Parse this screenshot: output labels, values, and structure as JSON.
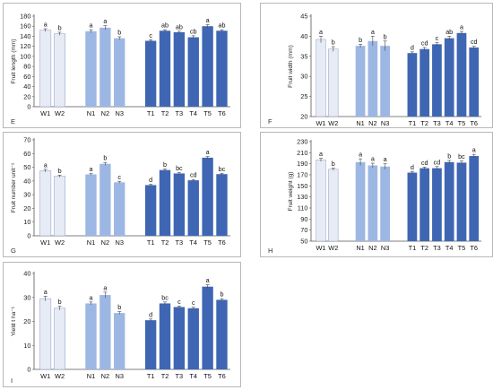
{
  "colors": {
    "W": "#e6ebf6",
    "N": "#9db7e4",
    "T": "#3f66b3",
    "green_letters": "#1e7a45",
    "axis": "#555555"
  },
  "chart_data": [
    {
      "type": "bar",
      "panel": "E",
      "ylabel": "Fruit length (mm)",
      "ylim": [
        0,
        180
      ],
      "yticks": [
        0,
        20,
        40,
        60,
        80,
        100,
        120,
        140,
        160,
        180
      ],
      "groups": [
        {
          "group": "W",
          "categories": [
            "W1",
            "W2"
          ],
          "values": [
            152,
            145
          ],
          "errors": [
            3,
            3
          ],
          "letters": [
            "a",
            "b"
          ]
        },
        {
          "group": "N",
          "categories": [
            "N1",
            "N2",
            "N3"
          ],
          "values": [
            150,
            157,
            136
          ],
          "errors": [
            3,
            4,
            3
          ],
          "letters": [
            "a",
            "a",
            "b"
          ]
        },
        {
          "group": "T",
          "categories": [
            "T1",
            "T2",
            "T3",
            "T4",
            "T5",
            "T6"
          ],
          "values": [
            131,
            151,
            148,
            138,
            160,
            151
          ],
          "errors": [
            2,
            2,
            2,
            3,
            3,
            2
          ],
          "letters": [
            "c",
            "ab",
            "ab",
            "cb",
            "a",
            "ab"
          ],
          "green": [
            false,
            false,
            false,
            false,
            true,
            false
          ]
        }
      ]
    },
    {
      "type": "bar",
      "panel": "F",
      "ylabel": "Fruit width (mm)",
      "ylim": [
        20,
        45
      ],
      "yticks": [
        20,
        25,
        30,
        35,
        40,
        45
      ],
      "groups": [
        {
          "group": "W",
          "categories": [
            "W1",
            "W2"
          ],
          "values": [
            39.2,
            36.8
          ],
          "errors": [
            0.8,
            0.6
          ],
          "letters": [
            "a",
            "b"
          ]
        },
        {
          "group": "N",
          "categories": [
            "N1",
            "N2",
            "N3"
          ],
          "values": [
            37.6,
            38.8,
            37.6
          ],
          "errors": [
            0.4,
            1.2,
            1.2
          ],
          "letters": [
            "b",
            "a",
            "b"
          ]
        },
        {
          "group": "T",
          "categories": [
            "T1",
            "T2",
            "T3",
            "T4",
            "T5",
            "T6"
          ],
          "values": [
            35.8,
            36.8,
            38.0,
            39.5,
            40.8,
            37.2
          ],
          "errors": [
            0.3,
            0.4,
            0.4,
            0.5,
            0.4,
            0.3
          ],
          "letters": [
            "d",
            "cd",
            "c",
            "ab",
            "a",
            "cd"
          ]
        }
      ]
    },
    {
      "type": "bar",
      "panel": "G",
      "ylabel": "Fruit number unit⁻¹",
      "ylim": [
        0,
        70
      ],
      "yticks": [
        0,
        10,
        20,
        30,
        40,
        50,
        60,
        70
      ],
      "groups": [
        {
          "group": "W",
          "categories": [
            "W1",
            "W2"
          ],
          "values": [
            47.5,
            43.5
          ],
          "errors": [
            1,
            0.8
          ],
          "letters": [
            "a",
            "b"
          ]
        },
        {
          "group": "N",
          "categories": [
            "N1",
            "N2",
            "N3"
          ],
          "values": [
            44.8,
            52.5,
            39
          ],
          "errors": [
            0.6,
            1.0,
            0.6
          ],
          "letters": [
            "a",
            "b",
            "c"
          ]
        },
        {
          "group": "T",
          "categories": [
            "T1",
            "T2",
            "T3",
            "T4",
            "T5",
            "T6"
          ],
          "values": [
            37,
            48,
            45.5,
            40.5,
            57,
            45
          ],
          "errors": [
            0.5,
            0.8,
            0.6,
            0.6,
            0.8,
            0.6
          ],
          "letters": [
            "d",
            "b",
            "bc",
            "cd",
            "a",
            "bc"
          ]
        }
      ]
    },
    {
      "type": "bar",
      "panel": "H",
      "ylabel": "Fruit weight (g)",
      "ylim": [
        50,
        230
      ],
      "yticks": [
        50,
        70,
        90,
        110,
        130,
        150,
        170,
        190,
        210,
        230
      ],
      "groups": [
        {
          "group": "W",
          "categories": [
            "W1",
            "W2"
          ],
          "values": [
            197,
            180
          ],
          "errors": [
            3,
            2
          ],
          "letters": [
            "a",
            "b"
          ]
        },
        {
          "group": "N",
          "categories": [
            "N1",
            "N2",
            "N3"
          ],
          "values": [
            193,
            187,
            185
          ],
          "errors": [
            6,
            4,
            5
          ],
          "letters": [
            "a",
            "a",
            "a"
          ],
          "green": [
            true,
            true,
            true
          ]
        },
        {
          "group": "T",
          "categories": [
            "T1",
            "T2",
            "T3",
            "T4",
            "T5",
            "T6"
          ],
          "values": [
            174,
            182,
            182,
            193,
            192,
            204
          ],
          "errors": [
            2,
            2,
            3,
            3,
            3,
            3
          ],
          "letters": [
            "d",
            "cd",
            "cd",
            "b",
            "bc",
            "a"
          ],
          "green": [
            false,
            true,
            true,
            false,
            false,
            true
          ]
        }
      ]
    },
    {
      "type": "bar",
      "panel": "I",
      "ylabel": "Yield t ha⁻¹",
      "ylim": [
        0,
        40
      ],
      "yticks": [
        0,
        10,
        20,
        30,
        40
      ],
      "groups": [
        {
          "group": "W",
          "categories": [
            "W1",
            "W2"
          ],
          "values": [
            29.5,
            25.5
          ],
          "errors": [
            1.0,
            0.8
          ],
          "letters": [
            "a",
            "b"
          ]
        },
        {
          "group": "N",
          "categories": [
            "N1",
            "N2",
            "N3"
          ],
          "values": [
            27.5,
            31.0,
            23.5
          ],
          "errors": [
            0.6,
            1.2,
            0.6
          ],
          "letters": [
            "a",
            "a",
            "b"
          ]
        },
        {
          "group": "T",
          "categories": [
            "T1",
            "T2",
            "T3",
            "T4",
            "T5",
            "T6"
          ],
          "values": [
            20.5,
            27.5,
            26.0,
            25.5,
            34.5,
            29.0
          ],
          "errors": [
            0.5,
            0.6,
            0.4,
            0.4,
            0.8,
            0.5
          ],
          "letters": [
            "d",
            "bc",
            "c",
            "c",
            "a",
            "b"
          ]
        }
      ]
    }
  ]
}
